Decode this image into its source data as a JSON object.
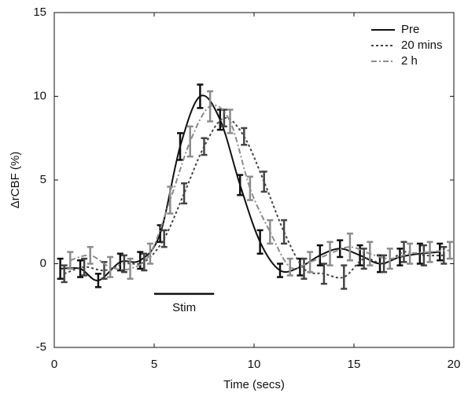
{
  "chart_data": {
    "type": "line",
    "xlabel": "Time (secs)",
    "ylabel": "ΔrCBF (%)",
    "xlim": [
      0,
      20
    ],
    "ylim": [
      -5,
      15
    ],
    "xticks": [
      0,
      5,
      10,
      15,
      20
    ],
    "yticks": [
      -5,
      0,
      5,
      10,
      15
    ],
    "grid": false,
    "legend": "upper right",
    "series": [
      {
        "name": "Pre",
        "color": "#111111",
        "linestyle": "solid",
        "x": [
          0.3,
          1.3,
          2.2,
          3.3,
          4.3,
          5.3,
          6.3,
          7.3,
          8.3,
          9.3,
          10.3,
          11.3,
          12.3,
          13.3,
          14.3,
          15.3,
          16.3,
          17.3,
          18.3,
          19.3
        ],
        "values": [
          -0.3,
          -0.3,
          -1.0,
          0.1,
          0.2,
          1.8,
          7.0,
          10.0,
          8.6,
          4.7,
          1.3,
          -0.4,
          -0.2,
          0.5,
          0.9,
          0.5,
          0.0,
          0.4,
          0.6,
          0.7
        ],
        "errors": [
          0.6,
          0.5,
          0.4,
          0.5,
          0.5,
          0.5,
          0.8,
          0.7,
          0.6,
          0.6,
          0.7,
          0.4,
          0.5,
          0.6,
          0.5,
          0.6,
          0.5,
          0.5,
          0.6,
          0.5
        ]
      },
      {
        "name": "20 mins",
        "color": "#444444",
        "linestyle": "dotted",
        "x": [
          0.5,
          1.5,
          2.5,
          3.5,
          4.5,
          5.5,
          6.5,
          7.5,
          8.5,
          9.5,
          10.5,
          11.5,
          12.5,
          13.5,
          14.5,
          15.5,
          16.5,
          17.5,
          18.5,
          19.5
        ],
        "values": [
          -0.6,
          -0.2,
          -0.4,
          0.0,
          0.1,
          1.5,
          4.2,
          7.0,
          8.7,
          7.6,
          4.9,
          1.9,
          -0.3,
          -0.6,
          -0.8,
          0.3,
          0.0,
          0.7,
          0.5,
          0.5
        ],
        "errors": [
          0.5,
          0.5,
          0.5,
          0.5,
          0.5,
          0.5,
          0.6,
          0.5,
          0.5,
          0.5,
          0.6,
          0.7,
          0.6,
          0.6,
          0.7,
          0.6,
          0.5,
          0.6,
          0.6,
          0.5
        ]
      },
      {
        "name": "2 h",
        "color": "#8c8c8c",
        "linestyle": "dashdot",
        "x": [
          0.8,
          1.8,
          2.8,
          3.8,
          4.8,
          5.8,
          6.8,
          7.8,
          8.8,
          9.8,
          10.8,
          11.8,
          12.8,
          13.8,
          14.8,
          15.8,
          16.8,
          17.8,
          18.8,
          19.8
        ],
        "values": [
          0.2,
          0.5,
          -0.2,
          -0.3,
          0.6,
          3.8,
          7.3,
          9.4,
          8.5,
          4.5,
          1.9,
          -0.2,
          0.1,
          0.6,
          1.0,
          0.6,
          0.3,
          0.6,
          0.7,
          0.8
        ],
        "errors": [
          0.5,
          0.5,
          0.6,
          0.6,
          0.6,
          0.8,
          0.9,
          0.9,
          0.7,
          0.7,
          0.7,
          0.5,
          0.6,
          0.7,
          0.8,
          0.7,
          0.6,
          0.6,
          0.6,
          0.5
        ]
      }
    ],
    "annotations": [
      {
        "label": "Stim",
        "xrange": [
          5,
          8
        ],
        "y": -1.8
      }
    ]
  }
}
